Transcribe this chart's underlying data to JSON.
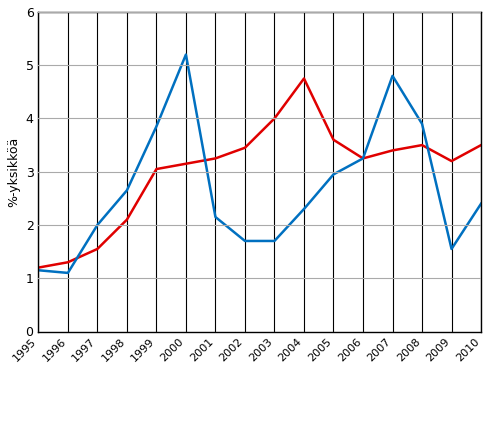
{
  "years": [
    1995,
    1996,
    1997,
    1998,
    1999,
    2000,
    2001,
    2002,
    2003,
    2004,
    2005,
    2006,
    2007,
    2008,
    2009,
    2010
  ],
  "osinko": [
    1.2,
    1.3,
    1.55,
    2.1,
    3.05,
    3.15,
    3.25,
    3.45,
    4.0,
    4.75,
    3.6,
    3.25,
    3.4,
    3.5,
    3.2,
    3.5
  ],
  "myynti": [
    1.15,
    1.1,
    2.0,
    2.65,
    3.85,
    5.2,
    2.15,
    1.7,
    1.7,
    2.3,
    2.95,
    3.25,
    4.8,
    3.9,
    1.55,
    2.4
  ],
  "osinko_color": "#e00000",
  "myynti_color": "#0070c0",
  "ylabel": "%-yksikköä",
  "ylim_min": 0,
  "ylim_max": 6,
  "yticks": [
    0,
    1,
    2,
    3,
    4,
    5,
    6
  ],
  "line_width": 1.8,
  "bg_color": "#ffffff",
  "h_grid_color": "#aaaaaa",
  "v_grid_color": "#000000",
  "figwidth": 4.88,
  "figheight": 4.25
}
